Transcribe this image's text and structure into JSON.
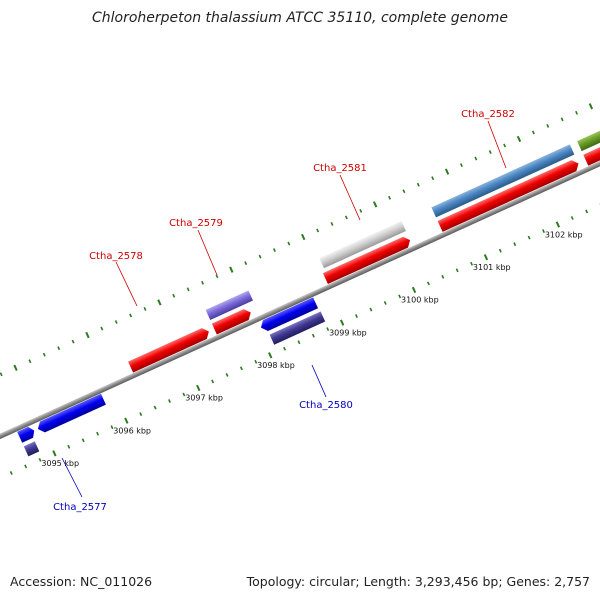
{
  "title": "Chloroherpeton thalassium ATCC 35110, complete genome",
  "accession": "Accession: NC_011026",
  "stats": "Topology: circular; Length: 3,293,456 bp; Genes: 2,757",
  "colors": {
    "backbone": "#8a8a8a",
    "tick": "#2a7a1e",
    "label_top": "#cc0000",
    "label_bottom": "#0000bb"
  },
  "ticks": [
    {
      "label": "3095 kbp"
    },
    {
      "label": "3096 kbp"
    },
    {
      "label": "3097 kbp"
    },
    {
      "label": "3098 kbp"
    },
    {
      "label": "3099 kbp"
    },
    {
      "label": "3100 kbp"
    },
    {
      "label": "3101 kbp"
    },
    {
      "label": "3102 kbp"
    }
  ],
  "gene_labels": [
    {
      "name": "Ctha_2577",
      "side": "bottom"
    },
    {
      "name": "Ctha_2578",
      "side": "top"
    },
    {
      "name": "Ctha_2579",
      "side": "top"
    },
    {
      "name": "Ctha_2580",
      "side": "bottom"
    },
    {
      "name": "Ctha_2581",
      "side": "top"
    },
    {
      "name": "Ctha_2582",
      "side": "top"
    }
  ]
}
